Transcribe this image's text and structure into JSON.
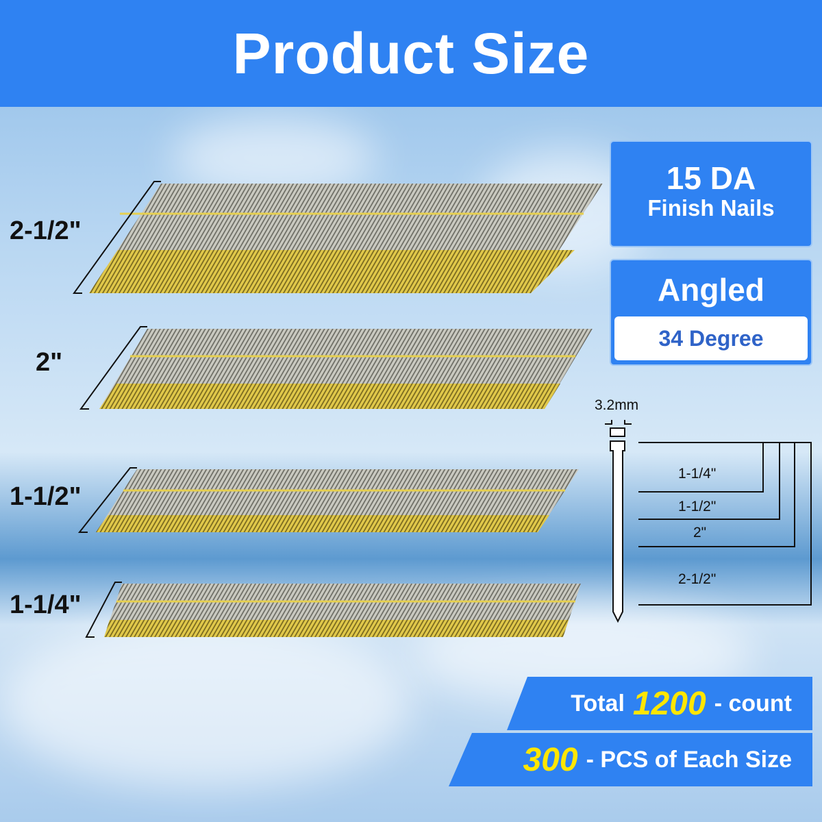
{
  "header": {
    "title": "Product Size"
  },
  "strips": [
    {
      "label": "2-1/2\""
    },
    {
      "label": "2\""
    },
    {
      "label": "1-1/2\""
    },
    {
      "label": "1-1/4\""
    }
  ],
  "spec_box": {
    "gauge": "15 DA",
    "type": "Finish Nails"
  },
  "angle_box": {
    "title": "Angled",
    "value": "34 Degree"
  },
  "diagram": {
    "head_width": "3.2mm",
    "lengths": [
      "1-1/4\"",
      "1-1/2\"",
      "2\"",
      "2-1/2\""
    ]
  },
  "count": {
    "prefix": "Total",
    "total": "1200",
    "suffix": "- count",
    "per_size": "300",
    "per_size_suffix": "- PCS of Each Size"
  },
  "colors": {
    "header": "#2f82f2",
    "accent_yellow": "#ffe600",
    "nail_gold": "#d8c040",
    "nail_silver": "#b8b8b0"
  }
}
